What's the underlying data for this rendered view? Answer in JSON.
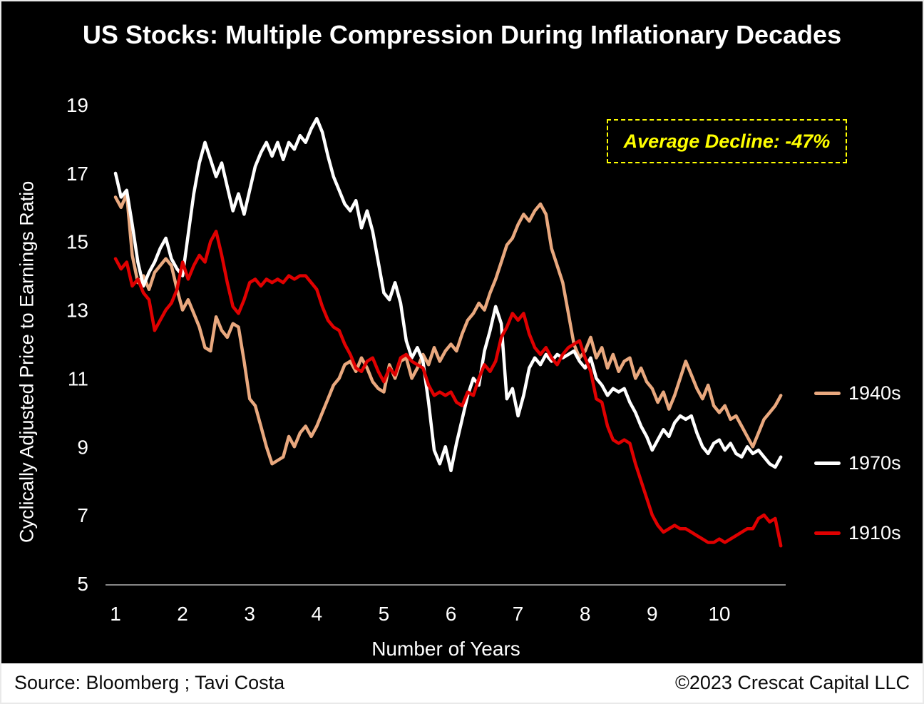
{
  "title": "US Stocks: Multiple Compression During Inflationary Decades",
  "annotation": {
    "text": "Average Decline: -47%",
    "color": "#ffff00"
  },
  "footer": {
    "source": "Source: Bloomberg ; Tavi Costa",
    "copyright": "©2023 Crescat Capital LLC"
  },
  "colors": {
    "background": "#000000",
    "text": "#ffffff",
    "axis": "#d8d8d8",
    "annotation": "#ffff00"
  },
  "chart_data": {
    "type": "line",
    "title": "US Stocks: Multiple Compression During Inflationary Decades",
    "xlabel": "Number of Years",
    "ylabel": "Cyclically Adjusted Price to Earnings Ratio",
    "xlim": [
      1,
      11
    ],
    "ylim": [
      5,
      19
    ],
    "xticks": [
      1,
      2,
      3,
      4,
      5,
      6,
      7,
      8,
      9,
      10
    ],
    "yticks": [
      5,
      7,
      9,
      11,
      13,
      15,
      17,
      19
    ],
    "x_start": 1,
    "x_step": 0.083333,
    "grid": false,
    "legend_position": "right",
    "series": [
      {
        "name": "1940s",
        "color": "#E9A87E",
        "values": [
          16.3,
          16.0,
          16.4,
          14.6,
          13.8,
          14.0,
          13.6,
          14.1,
          14.3,
          14.5,
          14.3,
          13.6,
          13.0,
          13.3,
          12.9,
          12.5,
          11.9,
          11.8,
          12.8,
          12.4,
          12.2,
          12.6,
          12.5,
          11.5,
          10.4,
          10.2,
          9.6,
          9.0,
          8.5,
          8.6,
          8.7,
          9.3,
          9.0,
          9.4,
          9.6,
          9.3,
          9.6,
          10.0,
          10.4,
          10.8,
          11.0,
          11.4,
          11.5,
          11.2,
          11.6,
          11.3,
          10.9,
          10.7,
          10.6,
          11.4,
          11.0,
          11.5,
          11.6,
          11.0,
          11.3,
          11.7,
          11.4,
          11.9,
          11.5,
          11.8,
          12.0,
          11.8,
          12.3,
          12.7,
          12.9,
          13.2,
          13.0,
          13.5,
          13.9,
          14.4,
          14.9,
          15.1,
          15.5,
          15.8,
          15.6,
          15.9,
          16.1,
          15.8,
          14.8,
          14.3,
          13.8,
          12.9,
          12.0,
          11.6,
          11.8,
          12.2,
          11.6,
          11.9,
          11.3,
          11.7,
          11.2,
          11.5,
          11.6,
          11.0,
          11.3,
          10.9,
          10.7,
          10.3,
          10.6,
          10.1,
          10.5,
          11.0,
          11.5,
          11.1,
          10.7,
          10.4,
          10.8,
          10.2,
          10.0,
          10.2,
          9.8,
          9.9,
          9.6,
          9.3,
          9.0,
          9.4,
          9.8,
          10.0,
          10.2,
          10.5
        ]
      },
      {
        "name": "1970s",
        "color": "#FFFFFF",
        "values": [
          17.0,
          16.3,
          16.5,
          15.5,
          14.4,
          13.7,
          14.1,
          14.4,
          14.8,
          15.1,
          14.5,
          14.2,
          14.0,
          15.2,
          16.4,
          17.3,
          17.9,
          17.4,
          16.9,
          17.3,
          16.6,
          15.9,
          16.4,
          15.8,
          16.5,
          17.2,
          17.6,
          17.9,
          17.5,
          17.9,
          17.4,
          17.9,
          17.7,
          18.1,
          17.9,
          18.3,
          18.6,
          18.2,
          17.5,
          16.9,
          16.5,
          16.1,
          15.9,
          16.2,
          15.4,
          15.9,
          15.3,
          14.4,
          13.5,
          13.3,
          13.8,
          13.2,
          12.1,
          11.6,
          11.9,
          11.5,
          10.3,
          8.9,
          8.5,
          9.0,
          8.3,
          9.1,
          9.8,
          10.5,
          11.0,
          10.8,
          11.8,
          12.4,
          13.1,
          12.6,
          10.4,
          10.7,
          9.9,
          10.5,
          11.3,
          11.6,
          11.4,
          11.7,
          11.5,
          11.7,
          11.6,
          11.7,
          11.8,
          11.5,
          11.3,
          11.6,
          11.0,
          10.8,
          10.5,
          10.7,
          10.6,
          10.7,
          10.3,
          10.0,
          9.6,
          9.3,
          8.9,
          9.2,
          9.5,
          9.3,
          9.7,
          9.9,
          9.8,
          9.9,
          9.4,
          9.0,
          8.8,
          9.1,
          9.2,
          8.9,
          9.1,
          8.8,
          8.7,
          9.0,
          8.8,
          8.9,
          8.7,
          8.5,
          8.4,
          8.7
        ]
      },
      {
        "name": "1910s",
        "color": "#E00000",
        "values": [
          14.5,
          14.2,
          14.4,
          13.7,
          13.9,
          13.5,
          13.3,
          12.4,
          12.7,
          13.0,
          13.2,
          13.6,
          14.4,
          13.9,
          14.3,
          14.6,
          14.4,
          15.0,
          15.3,
          14.6,
          13.8,
          13.1,
          12.9,
          13.3,
          13.8,
          13.9,
          13.7,
          13.9,
          13.8,
          13.9,
          13.8,
          14.0,
          13.9,
          14.0,
          14.0,
          13.8,
          13.6,
          13.1,
          12.7,
          12.5,
          12.4,
          12.0,
          11.7,
          11.3,
          11.2,
          11.5,
          11.6,
          11.2,
          10.9,
          11.3,
          11.1,
          11.6,
          11.7,
          11.5,
          11.4,
          11.3,
          10.8,
          10.5,
          10.6,
          10.5,
          10.6,
          10.3,
          10.2,
          10.6,
          10.5,
          11.0,
          11.4,
          11.2,
          11.5,
          12.2,
          12.5,
          12.9,
          12.7,
          12.9,
          12.3,
          11.9,
          11.7,
          11.9,
          11.6,
          11.4,
          11.7,
          11.9,
          12.0,
          12.1,
          11.6,
          11.2,
          10.4,
          10.3,
          9.6,
          9.2,
          9.1,
          9.2,
          9.1,
          8.5,
          8.0,
          7.5,
          7.0,
          6.7,
          6.5,
          6.6,
          6.7,
          6.6,
          6.6,
          6.5,
          6.4,
          6.3,
          6.2,
          6.2,
          6.3,
          6.2,
          6.3,
          6.4,
          6.5,
          6.6,
          6.6,
          6.9,
          7.0,
          6.8,
          6.9,
          6.1
        ]
      }
    ]
  }
}
